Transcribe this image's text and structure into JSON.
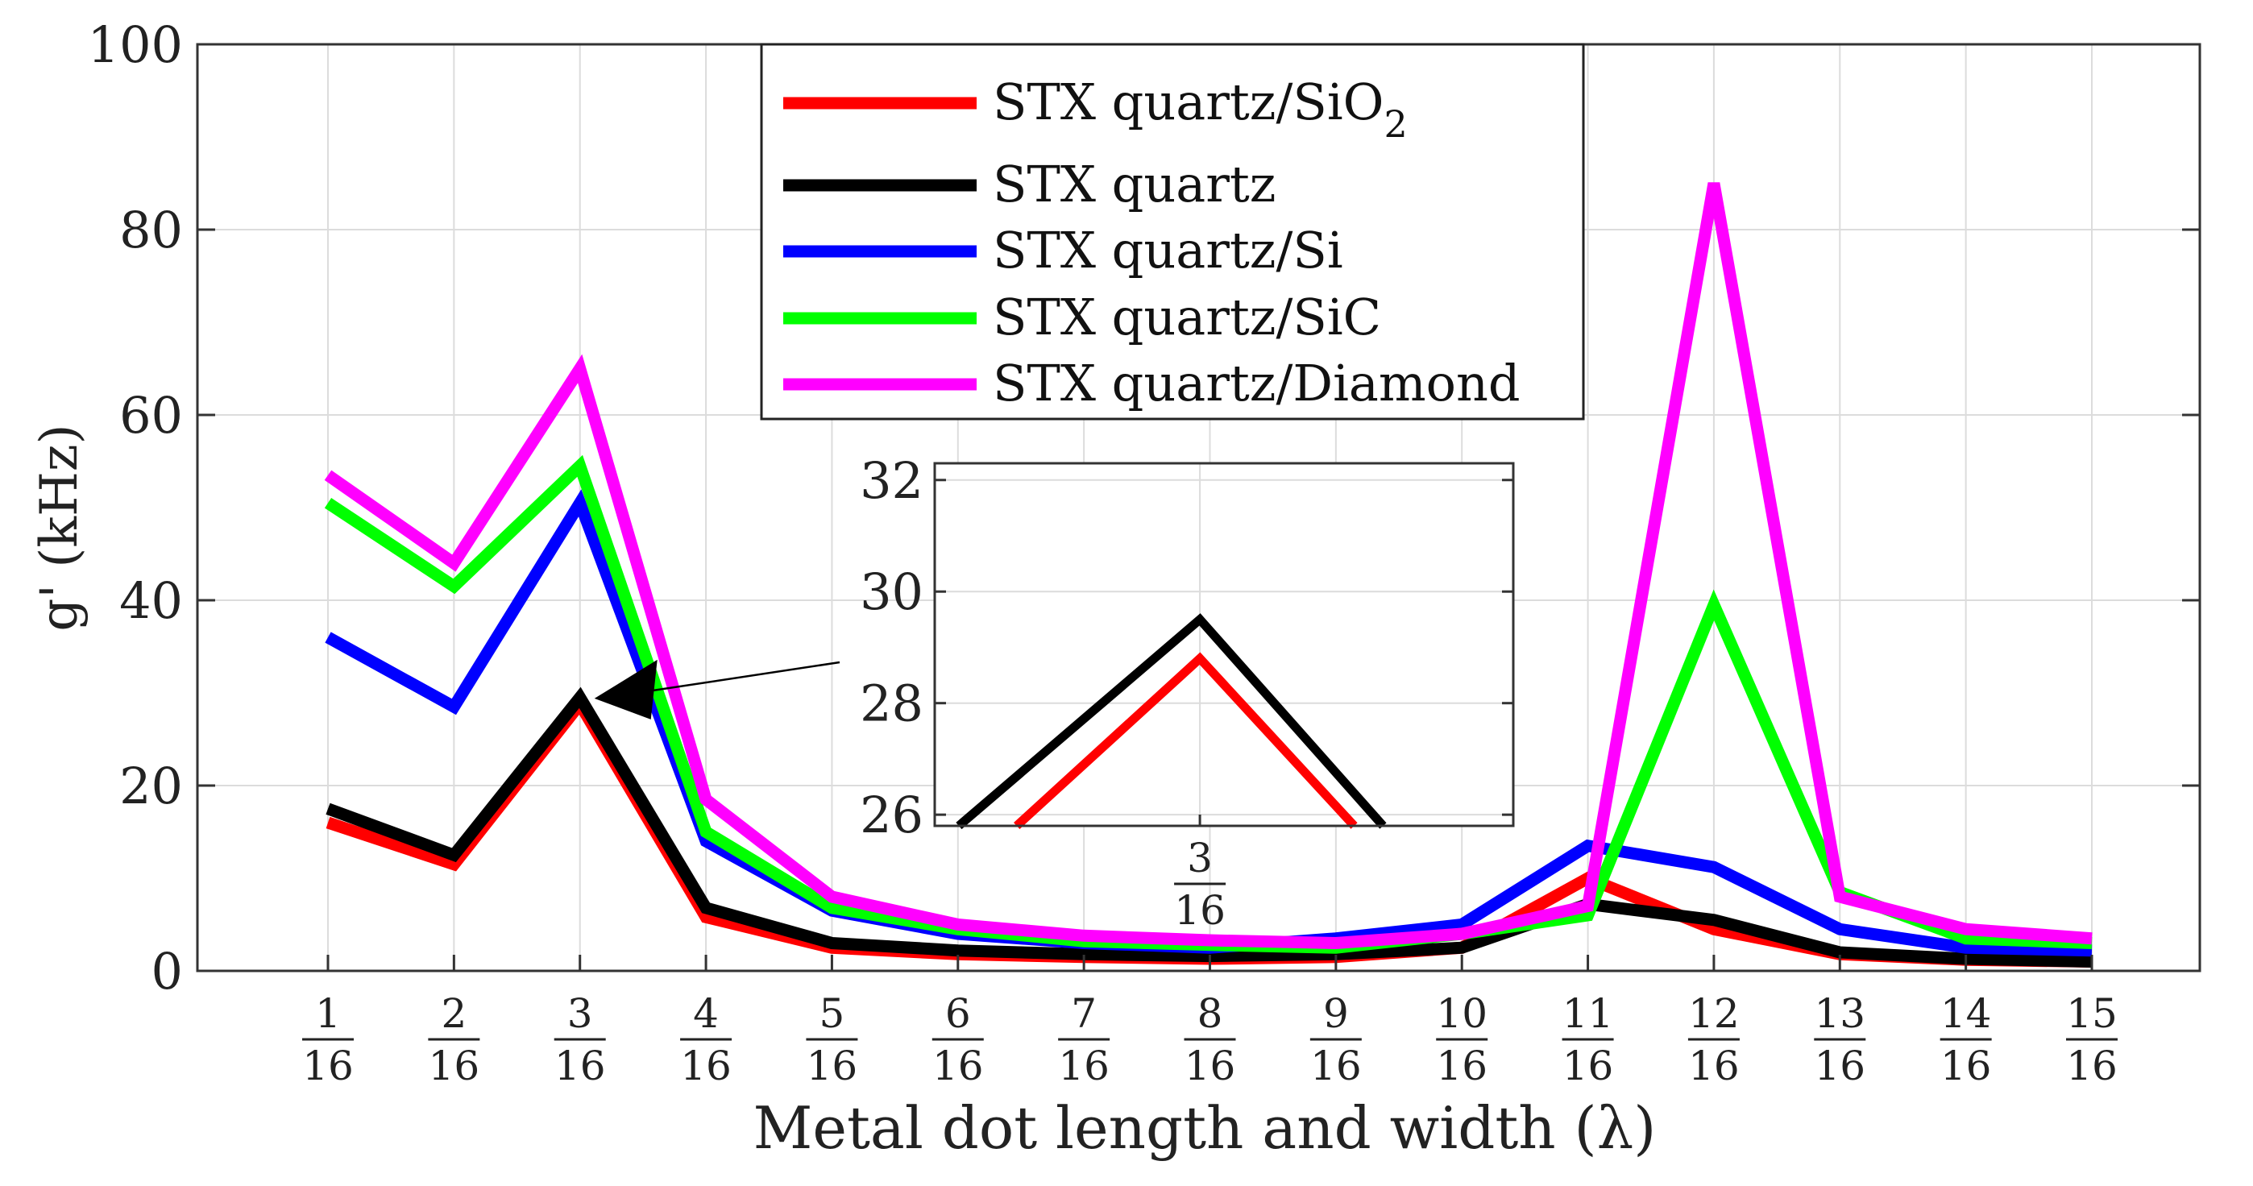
{
  "chart_data": {
    "type": "line",
    "title": "",
    "xlabel": "Metal dot length and width (λ)",
    "ylabel": "g' (kHz)",
    "ylim": [
      0,
      100
    ],
    "yticks": [
      0,
      20,
      40,
      60,
      80,
      100
    ],
    "grid": true,
    "legend_position": "top-center",
    "categories": [
      {
        "num": "1",
        "den": "16"
      },
      {
        "num": "2",
        "den": "16"
      },
      {
        "num": "3",
        "den": "16"
      },
      {
        "num": "4",
        "den": "16"
      },
      {
        "num": "5",
        "den": "16"
      },
      {
        "num": "6",
        "den": "16"
      },
      {
        "num": "7",
        "den": "16"
      },
      {
        "num": "8",
        "den": "16"
      },
      {
        "num": "9",
        "den": "16"
      },
      {
        "num": "10",
        "den": "16"
      },
      {
        "num": "11",
        "den": "16"
      },
      {
        "num": "12",
        "den": "16"
      },
      {
        "num": "13",
        "den": "16"
      },
      {
        "num": "14",
        "den": "16"
      },
      {
        "num": "15",
        "den": "16"
      }
    ],
    "series": [
      {
        "name": "STX quartz/SiO",
        "subscript": "2",
        "color": "#ff0000",
        "values": [
          16,
          11.5,
          28.8,
          5.8,
          2.5,
          1.8,
          1.5,
          1.3,
          1.5,
          2.5,
          10,
          4.5,
          1.8,
          1.2,
          1.0
        ]
      },
      {
        "name": "STX quartz",
        "subscript": "",
        "color": "#000000",
        "values": [
          17.5,
          12.5,
          29.5,
          6.8,
          3.0,
          2.2,
          1.8,
          1.6,
          1.8,
          2.5,
          7.2,
          5.5,
          2.0,
          1.3,
          1.0
        ]
      },
      {
        "name": "STX quartz/Si",
        "subscript": "",
        "color": "#0000ff",
        "values": [
          36,
          28.5,
          50.5,
          14,
          6.5,
          4,
          3,
          2.5,
          3.5,
          5,
          13.5,
          11.2,
          4.5,
          2.5,
          2.2
        ]
      },
      {
        "name": "STX quartz/SiC",
        "subscript": "",
        "color": "#00ff00",
        "values": [
          50.5,
          41.5,
          54.5,
          15,
          6.8,
          4.5,
          3.2,
          2.8,
          2.5,
          4,
          6,
          39.5,
          8.5,
          3.5,
          3
        ]
      },
      {
        "name": "STX quartz/Diamond",
        "subscript": "",
        "color": "#ff00ff",
        "values": [
          53.5,
          44,
          65,
          18.5,
          8,
          5,
          3.8,
          3.3,
          3,
          4,
          7,
          85,
          8,
          4.5,
          3.5
        ]
      }
    ],
    "inset": {
      "ylim": [
        25.8,
        32.3
      ],
      "yticks": [
        26,
        28,
        30,
        32
      ],
      "xlim": [
        -0.55,
        0.65
      ],
      "xtick": {
        "num": "3",
        "den": "16"
      },
      "series": [
        {
          "name": "STX quartz",
          "color": "#000000",
          "x": [
            -0.5,
            0,
            0.38
          ],
          "y": [
            25.8,
            29.5,
            25.8
          ]
        },
        {
          "name": "STX quartz/SiO",
          "color": "#ff0000",
          "x": [
            -0.38,
            0,
            0.32
          ],
          "y": [
            25.8,
            28.8,
            25.8
          ]
        }
      ]
    }
  }
}
